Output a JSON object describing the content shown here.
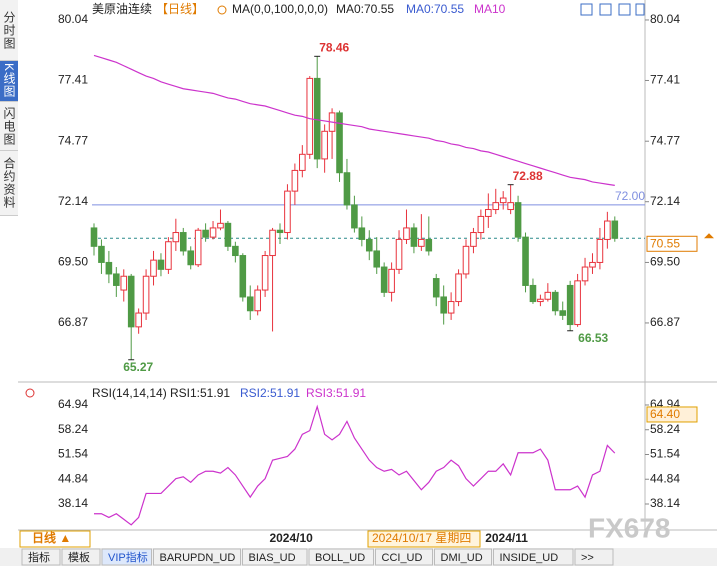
{
  "sidebar": [
    "分时图",
    "K线图",
    "闪电图",
    "合约资料"
  ],
  "header": {
    "symbol": "美原油连续",
    "period": "【日线】",
    "ma_params": "MA(0,0,100,0,0,0)",
    "ma0a": "MA0:70.55",
    "ma0b": "MA0:70.55"
  },
  "rsi_header": {
    "params": "RSI(14,14,14)",
    "rsi1": "RSI1:51.91",
    "rsi2": "RSI2:51.91",
    "rsi3": "RSI3:51.91"
  },
  "timebar": {
    "period": "日线 ▲",
    "crosshair": "2024/10/17 星期四"
  },
  "tabs": [
    "指标",
    "模板",
    "VIP指标",
    "BARUPDN_UD",
    "BIAS_UD",
    "BOLL_UD",
    "CCI_UD",
    "DMI_UD",
    "INSIDE_UD",
    ">>"
  ],
  "watermark": "FX678",
  "chart_data": {
    "type": "candlestick",
    "categories": [
      null,
      null,
      null,
      null,
      null,
      null,
      null,
      null,
      null,
      null,
      null,
      null,
      null,
      null,
      null,
      null,
      null,
      null,
      null,
      null,
      null,
      null,
      null,
      null,
      null,
      null,
      "2024/10",
      null,
      null,
      null,
      null,
      null,
      null,
      null,
      null,
      null,
      null,
      null,
      null,
      null,
      null,
      null,
      null,
      null,
      null,
      null,
      null,
      null,
      null,
      null,
      null,
      null,
      null,
      null,
      null,
      "2024/11",
      null,
      null,
      null,
      null,
      null,
      null,
      null,
      null,
      null,
      null,
      null,
      null,
      null,
      null,
      null
    ],
    "open": [
      71.0,
      70.2,
      69.5,
      69.0,
      68.3,
      68.9,
      66.7,
      67.3,
      68.9,
      69.6,
      69.2,
      70.4,
      70.8,
      70.0,
      69.4,
      70.9,
      70.6,
      71.0,
      71.2,
      70.2,
      69.8,
      68.0,
      67.4,
      68.3,
      69.8,
      70.9,
      70.8,
      72.6,
      73.5,
      74.2,
      77.5,
      74.0,
      75.2,
      76.0,
      73.4,
      72.0,
      71.0,
      70.5,
      70.0,
      69.3,
      68.2,
      69.2,
      70.5,
      71.0,
      70.2,
      70.5,
      68.8,
      68.0,
      67.3,
      67.8,
      69.0,
      70.2,
      70.8,
      71.5,
      71.8,
      72.1,
      71.8,
      72.1,
      70.6,
      68.5,
      67.8,
      67.9,
      68.2,
      67.4,
      68.5,
      66.8,
      68.7,
      69.3,
      69.5,
      70.5,
      71.3
    ],
    "high": [
      71.2,
      70.5,
      70.0,
      69.3,
      69.2,
      69.0,
      67.5,
      69.2,
      70.0,
      69.9,
      70.6,
      71.4,
      71.0,
      70.2,
      71.0,
      71.2,
      71.3,
      71.8,
      71.3,
      70.4,
      69.9,
      68.5,
      68.5,
      70.0,
      71.0,
      71.2,
      72.9,
      73.8,
      74.6,
      77.6,
      78.46,
      75.5,
      76.2,
      76.1,
      74.0,
      72.4,
      71.5,
      70.9,
      70.6,
      69.5,
      69.5,
      70.9,
      71.8,
      71.2,
      71.6,
      71.5,
      69.0,
      68.5,
      68.2,
      69.2,
      70.5,
      71.0,
      71.8,
      72.5,
      72.7,
      72.6,
      72.88,
      72.4,
      70.8,
      68.8,
      68.1,
      68.6,
      68.3,
      67.8,
      68.7,
      69.0,
      69.7,
      69.9,
      71.0,
      71.7,
      71.5
    ],
    "low": [
      69.8,
      69.0,
      68.6,
      68.0,
      67.8,
      65.27,
      66.4,
      67.0,
      68.5,
      68.9,
      69.0,
      70.0,
      69.8,
      69.2,
      69.3,
      70.4,
      70.5,
      70.9,
      70.0,
      69.5,
      67.8,
      67.0,
      67.2,
      68.0,
      66.5,
      70.3,
      70.5,
      72.0,
      73.2,
      74.0,
      73.6,
      73.4,
      74.0,
      73.0,
      71.8,
      70.8,
      70.2,
      69.6,
      69.0,
      68.0,
      67.8,
      69.0,
      70.3,
      69.9,
      70.0,
      69.8,
      67.6,
      66.8,
      67.0,
      67.6,
      68.8,
      69.9,
      70.5,
      71.0,
      71.6,
      71.8,
      71.6,
      70.4,
      68.2,
      67.7,
      67.6,
      67.8,
      67.2,
      67.0,
      66.53,
      66.7,
      68.5,
      69.0,
      69.2,
      70.1,
      70.4
    ],
    "close": [
      70.2,
      69.5,
      69.0,
      68.5,
      68.9,
      66.7,
      67.3,
      68.9,
      69.6,
      69.2,
      70.4,
      70.8,
      70.0,
      69.4,
      70.9,
      70.6,
      71.0,
      71.2,
      70.2,
      69.8,
      68.0,
      67.4,
      68.3,
      69.8,
      70.9,
      70.8,
      72.6,
      73.5,
      74.2,
      77.5,
      74.0,
      75.2,
      76.0,
      73.4,
      72.0,
      71.0,
      70.5,
      70.0,
      69.3,
      68.2,
      69.2,
      70.5,
      71.0,
      70.2,
      70.5,
      70.0,
      68.0,
      67.3,
      67.8,
      69.0,
      70.2,
      70.8,
      71.5,
      71.8,
      72.1,
      72.3,
      72.1,
      70.6,
      68.5,
      67.8,
      67.9,
      68.2,
      67.4,
      67.2,
      66.8,
      68.7,
      69.3,
      69.5,
      70.5,
      71.3,
      70.55
    ],
    "up_color": "#e8323c",
    "down_color": "#4f9a45",
    "ylim": [
      64.39,
      80.56
    ],
    "yticks": [
      80.04,
      77.41,
      74.77,
      72.14,
      {
        "value": 69.5,
        "label": "69.50"
      },
      66.87
    ],
    "series": [
      {
        "name": "MA10",
        "color": "#cc33cc",
        "values": [
          78.5,
          78.4,
          78.3,
          78.2,
          78.05,
          77.9,
          77.75,
          77.6,
          77.5,
          77.35,
          77.25,
          77.15,
          77.05,
          77.0,
          76.95,
          76.9,
          76.85,
          76.75,
          76.65,
          76.6,
          76.5,
          76.4,
          76.35,
          76.3,
          76.2,
          76.1,
          76.0,
          75.9,
          75.85,
          75.75,
          75.7,
          75.65,
          75.6,
          75.55,
          75.5,
          75.45,
          75.4,
          75.3,
          75.25,
          75.2,
          75.15,
          75.1,
          75.05,
          75.0,
          74.95,
          74.9,
          74.8,
          74.75,
          74.65,
          74.6,
          74.5,
          74.45,
          74.35,
          74.3,
          74.2,
          74.1,
          74.0,
          73.9,
          73.8,
          73.7,
          73.6,
          73.5,
          73.4,
          73.3,
          73.2,
          73.15,
          73.1,
          73.0,
          72.95,
          72.9,
          72.85
        ]
      }
    ],
    "reference_line": {
      "value": 72,
      "label": "72.00",
      "color": "#7f8fe0"
    },
    "last_price": 70.55,
    "rsi": {
      "ylim": [
        31.64,
        66.83
      ],
      "yticks": [
        64.94,
        58.24,
        51.54,
        44.84,
        38.14
      ],
      "color": "#cc33cc",
      "values": [
        35.5,
        35.5,
        34.5,
        35.5,
        34,
        32.5,
        34.5,
        41,
        41,
        41,
        43,
        45,
        45.5,
        44,
        46,
        47,
        47,
        46.5,
        48,
        46,
        43,
        40,
        43,
        45,
        50,
        50.5,
        51,
        53,
        57,
        58,
        64.5,
        57,
        55.5,
        57,
        60.5,
        56,
        53,
        50,
        48,
        47,
        47.5,
        46,
        47,
        44.5,
        42,
        44,
        47,
        48,
        50,
        48.5,
        45,
        43,
        45,
        47,
        47,
        49,
        46,
        52,
        52,
        52,
        53,
        50,
        42,
        42,
        42,
        43,
        40,
        46,
        47,
        54,
        51.91
      ],
      "marker": {
        "value": 64.4,
        "label": "64.40"
      }
    }
  }
}
